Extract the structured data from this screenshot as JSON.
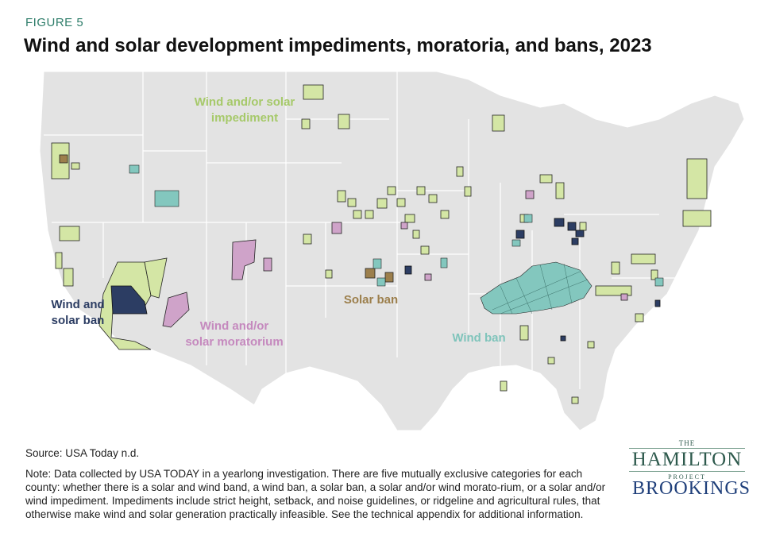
{
  "figure_label": "FIGURE 5",
  "title": "Wind and solar development impediments, moratoria, and bans, 2023",
  "map_labels": {
    "impediment": [
      "Wind and/or solar",
      "impediment"
    ],
    "moratorium": [
      "Wind and/or",
      "solar moratorium"
    ],
    "wind_solar_ban": [
      "Wind and",
      "solar ban"
    ],
    "solar_ban": "Solar ban",
    "wind_ban": "Wind ban"
  },
  "colors": {
    "impediment": "#d4e6a5",
    "moratorium": "#cfa3c9",
    "wind_solar_ban": "#2c3d63",
    "solar_ban": "#9c7f4c",
    "wind_ban": "#83c7be",
    "land": "#e3e3e3",
    "borders": "#ffffff",
    "label_impediment": "#a6c96a",
    "label_moratorium": "#c589be",
    "label_wind_solar_ban": "#2c3d63",
    "label_solar_ban": "#9c7f4c",
    "label_wind_ban": "#7fc4bb"
  },
  "source": "Source: USA Today n.d.",
  "note": "Note: Data collected by USA TODAY in a yearlong investigation. There are five mutually exclusive categories for each county: whether there is a solar and wind band, a wind ban, a solar ban, a solar and/or wind morato-rium, or a solar and/or wind impediment. Impediments include strict height, setback, and noise guidelines, or ridgeline and agricultural rules, that otherwise make wind and solar generation practically infeasible. See the technical appendix for additional information.",
  "logos": {
    "hamilton_the": "THE",
    "hamilton_name": "HAMILTON",
    "hamilton_project": "PROJECT",
    "brookings": "BROOKINGS"
  }
}
